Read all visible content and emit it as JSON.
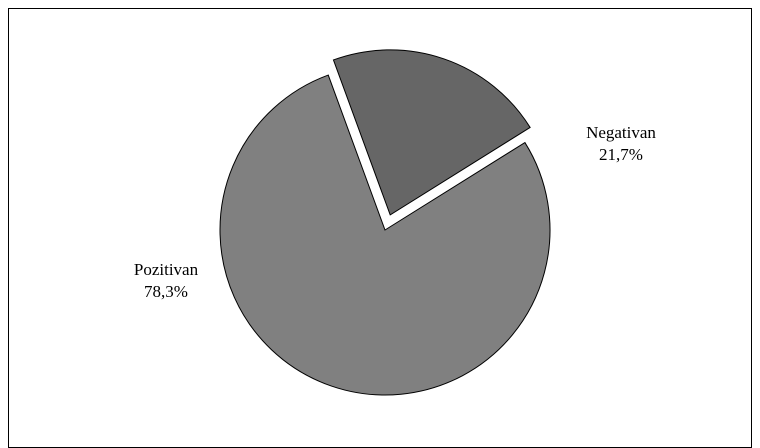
{
  "chart_data": {
    "type": "pie",
    "title": "",
    "slices": [
      {
        "label": "Pozitivan",
        "value": 78.3,
        "value_label": "78,3%",
        "color": "#808080",
        "exploded": false
      },
      {
        "label": "Negativan",
        "value": 21.7,
        "value_label": "21,7%",
        "color": "#666666",
        "exploded": true
      }
    ],
    "start_angle_deg": 32,
    "direction": "counterclockwise",
    "legend": "none",
    "stroke_color": "#000000"
  }
}
